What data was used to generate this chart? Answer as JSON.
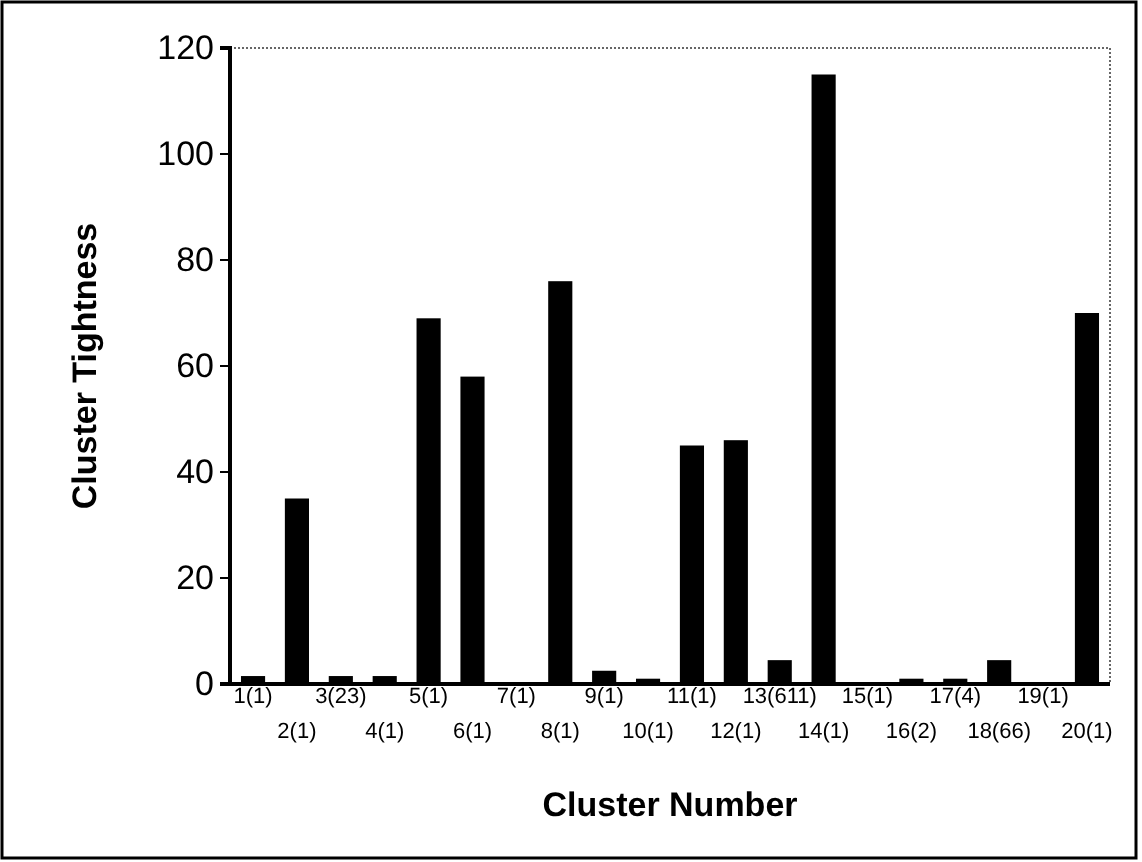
{
  "chart_data": {
    "type": "bar",
    "xlabel": "Cluster Number",
    "ylabel": "Cluster Tightness",
    "categories": [
      "1(1)",
      "2(1)",
      "3(23)",
      "4(1)",
      "5(1)",
      "6(1)",
      "7(1)",
      "8(1)",
      "9(1)",
      "10(1)",
      "11(1)",
      "12(1)",
      "13(611)",
      "14(1)",
      "15(1)",
      "16(2)",
      "17(4)",
      "18(66)",
      "19(1)",
      "20(1)"
    ],
    "values": [
      1.5,
      35,
      1.5,
      1.5,
      69,
      58,
      0,
      76,
      2.5,
      1,
      45,
      46,
      4.5,
      115,
      0,
      1,
      1,
      4.5,
      0,
      70
    ],
    "color": "#000000",
    "ylim": [
      0,
      120
    ],
    "yticks": [
      0,
      20,
      40,
      60,
      80,
      100,
      120
    ],
    "grid": false
  }
}
